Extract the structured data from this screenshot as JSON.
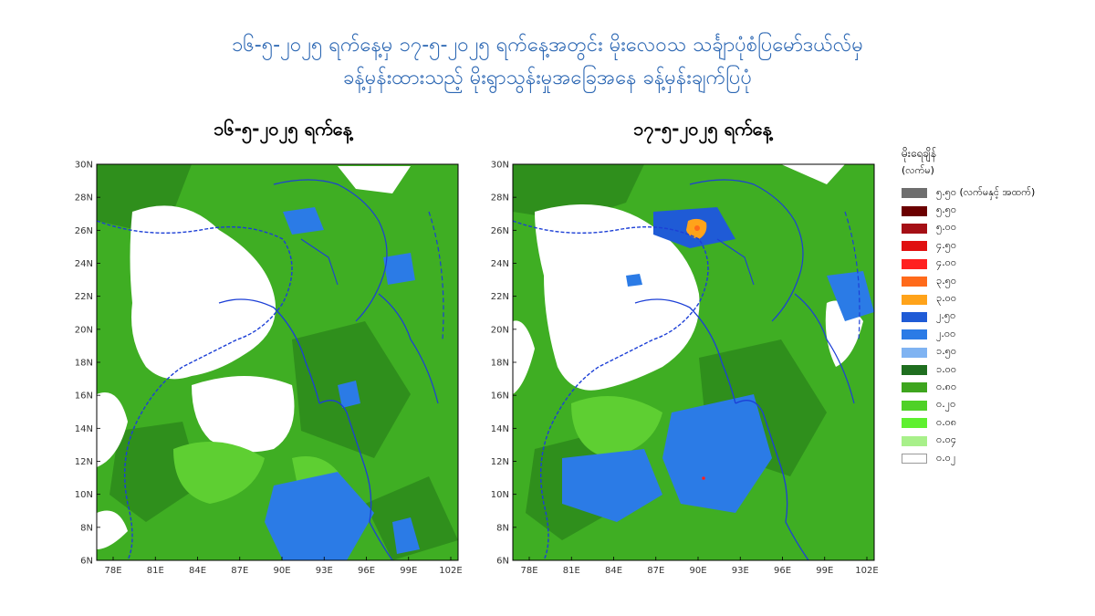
{
  "title_line1": "၁၆-၅-၂၀၂၅ ရက်နေ့မှ ၁၇-၅-၂၀၂၅ ရက်နေ့အတွင်း မိုးလေဝသ သင်္ချာပုံစံပြမော်ဒယ်လ်မှ",
  "title_line2": "ခန့်မှန်းထားသည့် မိုးရွာသွန်းမှုအခြေအနေ ခန့်မှန်းချက်ပြပုံ",
  "maps": [
    {
      "date_label": "၁၆-၅-၂၀၂၅ ရက်နေ့",
      "lat_labels": [
        "30N",
        "28N",
        "26N",
        "24N",
        "22N",
        "20N",
        "18N",
        "16N",
        "14N",
        "12N",
        "10N",
        "8N",
        "6N"
      ],
      "lon_labels": [
        "78E",
        "81E",
        "84E",
        "87E",
        "90E",
        "93E",
        "96E",
        "99E",
        "102E"
      ]
    },
    {
      "date_label": "၁၇-၅-၂၀၂၅ ရက်နေ့",
      "lat_labels": [
        "30N",
        "28N",
        "26N",
        "24N",
        "22N",
        "20N",
        "18N",
        "16N",
        "14N",
        "12N",
        "10N",
        "8N",
        "6N"
      ],
      "lon_labels": [
        "78E",
        "81E",
        "84E",
        "87E",
        "90E",
        "93E",
        "96E",
        "99E",
        "102E"
      ]
    }
  ],
  "legend": {
    "title": "မိုးရေချိန်",
    "unit": "(လက်မ)",
    "items": [
      {
        "label": "၅.၅၀ (လက်မနှင့် အထက်)",
        "color": "#6e6e6e"
      },
      {
        "label": "၅.၅၀",
        "color": "#6b0000"
      },
      {
        "label": "၅.၀၀",
        "color": "#a50f15"
      },
      {
        "label": "၄.၅၀",
        "color": "#e01010"
      },
      {
        "label": "၄.၀၀",
        "color": "#ff2020"
      },
      {
        "label": "၃.၅၀",
        "color": "#ff6a1a"
      },
      {
        "label": "၃.၀၀",
        "color": "#ffa31a"
      },
      {
        "label": "၂.၅၀",
        "color": "#1f5bd6"
      },
      {
        "label": "၂.၀၀",
        "color": "#2b7be6"
      },
      {
        "label": "၁.၅၀",
        "color": "#7fb3f2"
      },
      {
        "label": "၁.၀၀",
        "color": "#1f6e1f"
      },
      {
        "label": "၀.၈၀",
        "color": "#3ea51e"
      },
      {
        "label": "၀.၂၀",
        "color": "#4fd127"
      },
      {
        "label": "၀.၀၈",
        "color": "#5ef02f"
      },
      {
        "label": "၀.၀၄",
        "color": "#a8f08a"
      },
      {
        "label": "၀.၀၂",
        "color": "#ffffff"
      }
    ]
  }
}
